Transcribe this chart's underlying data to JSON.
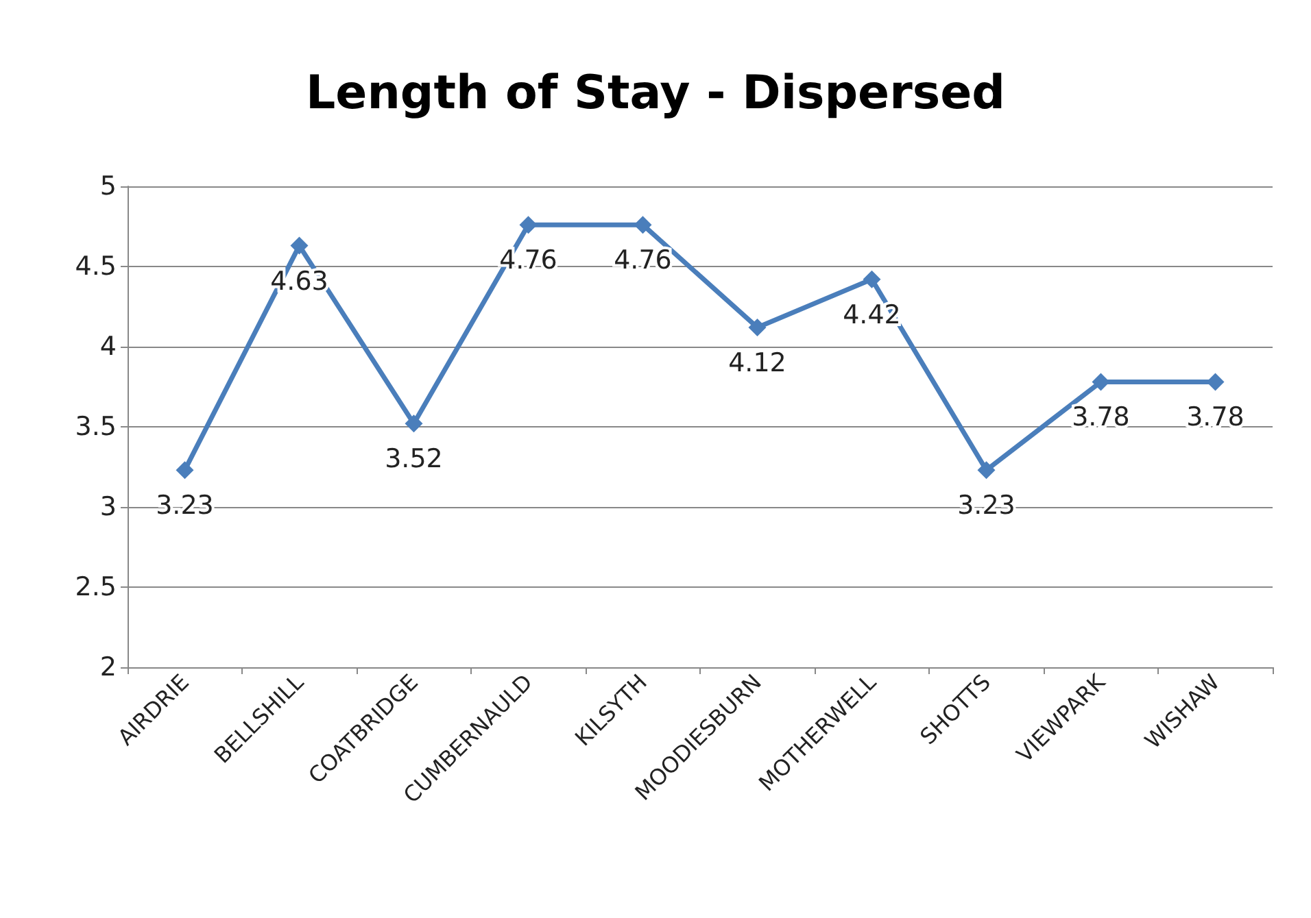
{
  "chart_data": {
    "type": "line",
    "title": "Length of Stay - Dispersed",
    "categories": [
      "AIRDRIE",
      "BELLSHILL",
      "COATBRIDGE",
      "CUMBERNAULD",
      "KILSYTH",
      "MOODIESBURN",
      "MOTHERWELL",
      "SHOTTS",
      "VIEWPARK",
      "WISHAW"
    ],
    "series": [
      {
        "color": "#4a7ebb",
        "values": [
          3.23,
          4.63,
          3.52,
          4.76,
          4.76,
          4.12,
          4.42,
          3.23,
          3.78,
          3.78
        ]
      }
    ],
    "ylim": [
      2,
      5
    ],
    "yticks": [
      2,
      2.5,
      3,
      3.5,
      4,
      4.5,
      5
    ],
    "grid": "y",
    "marker": "diamond",
    "line_style": "solid",
    "data_labels": true
  }
}
